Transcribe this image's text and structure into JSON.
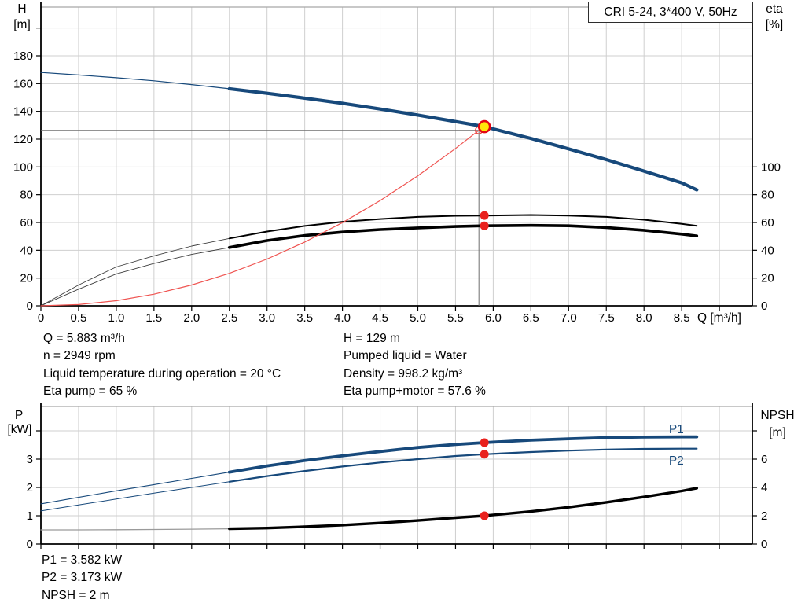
{
  "title_box": {
    "label": "CRI 5-24, 3*400 V, 50Hz"
  },
  "axis_labels": {
    "qh_left_1": "H",
    "qh_left_2": "[m]",
    "qh_right_1": "eta",
    "qh_right_2": "[%]",
    "x_unit": "Q [m³/h]",
    "p_left_1": "P",
    "p_left_2": "[kW]",
    "p_right_1": "NPSH",
    "p_right_2": "[m]"
  },
  "operating_point_info": {
    "left": [
      "Q = 5.883 m³/h",
      "n = 2949 rpm",
      "Liquid temperature during operation = 20 °C",
      "Eta pump = 65 %"
    ],
    "right": [
      "H = 129 m",
      "Pumped liquid = Water",
      "Density = 998.2 kg/m³",
      "Eta pump+motor = 57.6 %"
    ]
  },
  "power_info": [
    "P1 = 3.582 kW",
    "P2 = 3.173 kW",
    "NPSH = 2 m"
  ],
  "colors": {
    "curve_blue": "#17497b",
    "curve_black": "#000000",
    "thin_dark": "#3d3d3d",
    "system_red": "#ef5350",
    "marker_red": "#e9211d",
    "duty_yellow": "#ffe80a",
    "duty_ring": "#e30613",
    "grid": "#cfcfcf",
    "frame": "#a8a8a8",
    "crosshair": "#6e6e6e",
    "npsh_thin_gray": "#9a9a9a"
  },
  "chart_data": [
    {
      "id": "qh",
      "type": "line",
      "title": "CRI 5-24, 3*400 V, 50Hz",
      "xlabel": "Q [m³/h]",
      "ylabel_left": "H [m]",
      "ylabel_right": "eta [%]",
      "xlim": [
        0,
        9.44
      ],
      "ylim_left": [
        0,
        215
      ],
      "ylim_right": [
        0,
        215
      ],
      "right_axis_factor": 1,
      "grid": true,
      "grid_x": [
        0.5,
        1,
        1.5,
        2,
        2.5,
        3,
        3.5,
        4,
        4.5,
        5,
        5.5,
        6,
        6.5,
        7,
        7.5,
        8,
        8.5,
        9
      ],
      "grid_y": [
        20,
        40,
        60,
        80,
        100,
        120,
        140,
        160,
        180,
        200
      ],
      "x_ticks": [
        0,
        0.5,
        1,
        1.5,
        2,
        2.5,
        3,
        3.5,
        4,
        4.5,
        5,
        5.5,
        6,
        6.5,
        7,
        7.5,
        8,
        8.5,
        9
      ],
      "x_tick_labels": [
        "0",
        "0.5",
        "1.0",
        "1.5",
        "2.0",
        "2.5",
        "3.0",
        "3.5",
        "4.0",
        "4.5",
        "5.0",
        "5.5",
        "6.0",
        "6.5",
        "7.0",
        "7.5",
        "8.0",
        "8.5",
        ""
      ],
      "left_ticks": [
        0,
        20,
        40,
        60,
        80,
        100,
        120,
        140,
        160,
        180,
        200
      ],
      "left_tick_labels": [
        "0",
        "20",
        "40",
        "60",
        "80",
        "100",
        "120",
        "140",
        "160",
        "180",
        ""
      ],
      "right_ticks": [
        0,
        20,
        40,
        60,
        80,
        100
      ],
      "right_tick_labels": [
        "0",
        "20",
        "40",
        "60",
        "80",
        "100"
      ],
      "series": [
        {
          "name": "pump-head",
          "axis": "left",
          "color": "#17497b",
          "width": 4.2,
          "thin_width": 1.2,
          "thin_until": 2.5,
          "x": [
            0,
            0.5,
            1,
            1.5,
            2,
            2.5,
            3,
            3.5,
            4,
            4.5,
            5,
            5.5,
            5.883,
            6.5,
            7,
            7.5,
            8,
            8.5,
            8.7
          ],
          "y": [
            168,
            166.2,
            164.2,
            162,
            159.3,
            156.3,
            153,
            149.5,
            145.8,
            141.7,
            137.3,
            132.6,
            129,
            120.5,
            113,
            105.3,
            97,
            88.5,
            83.5
          ]
        },
        {
          "name": "eta-pump",
          "axis": "right",
          "color": "#000000",
          "thin_color": "#3d3d3d",
          "width": 2,
          "thin_width": 0.9,
          "thin_until": 2.5,
          "x": [
            0,
            0.5,
            1,
            1.5,
            2,
            2.5,
            3,
            3.5,
            4,
            4.5,
            5,
            5.5,
            5.883,
            6.5,
            7,
            7.5,
            8,
            8.5,
            8.7
          ],
          "y": [
            0,
            15,
            28,
            36,
            43,
            48.5,
            53.5,
            57.5,
            60.5,
            62.5,
            64,
            64.8,
            65,
            65.4,
            65,
            64,
            62,
            59,
            57.6
          ]
        },
        {
          "name": "eta-pump-motor",
          "axis": "right",
          "color": "#000000",
          "thin_color": "#3d3d3d",
          "width": 3.6,
          "thin_width": 0.9,
          "thin_until": 2.5,
          "x": [
            0,
            0.5,
            1,
            1.5,
            2,
            2.5,
            3,
            3.5,
            4,
            4.5,
            5,
            5.5,
            5.883,
            6.5,
            7,
            7.5,
            8,
            8.5,
            8.7
          ],
          "y": [
            0,
            12,
            23,
            30.5,
            37,
            42,
            47,
            50.6,
            53.1,
            54.9,
            56.1,
            57.1,
            57.6,
            57.9,
            57.6,
            56.4,
            54.4,
            51.6,
            50.3
          ]
        },
        {
          "name": "system-curve",
          "axis": "left",
          "color": "#ef5350",
          "width": 1.2,
          "thin_until": null,
          "x": [
            0,
            0.5,
            1,
            1.5,
            2,
            2.5,
            3,
            3.5,
            4,
            4.5,
            5,
            5.5,
            5.81,
            5.883
          ],
          "y": [
            0,
            0.9,
            3.7,
            8.4,
            15,
            23.4,
            33.7,
            45.9,
            59.9,
            75.8,
            93.6,
            113.3,
            126.4,
            129.3
          ]
        }
      ],
      "crosshair": {
        "q": 5.81,
        "v": 126.4,
        "color": "#6e6e6e"
      },
      "markers": [
        {
          "name": "system-intersection-marker",
          "style": "open",
          "axis": "left",
          "q": 5.81,
          "v": 126.4,
          "ring": "#e8413d"
        },
        {
          "name": "duty-point-marker",
          "style": "duty",
          "axis": "left",
          "q": 5.883,
          "v": 129,
          "fill": "#ffe80a",
          "ring": "#e30613"
        },
        {
          "name": "eta-pump-marker",
          "style": "dot",
          "axis": "right",
          "q": 5.883,
          "v": 65,
          "fill": "#e9211d"
        },
        {
          "name": "eta-pump-motor-marker",
          "style": "dot",
          "axis": "right",
          "q": 5.883,
          "v": 57.6,
          "fill": "#e9211d"
        }
      ],
      "curve_labels": []
    },
    {
      "id": "power",
      "type": "line",
      "title": "",
      "xlabel": "Q [m³/h]",
      "ylabel_left": "P [kW]",
      "ylabel_right": "NPSH [m]",
      "xlim": [
        0,
        9.44
      ],
      "ylim_left": [
        0,
        4.86
      ],
      "ylim_right": [
        0,
        9.72
      ],
      "right_axis_factor": 0.5,
      "grid": true,
      "grid_x": [
        0.5,
        1,
        1.5,
        2,
        2.5,
        3,
        3.5,
        4,
        4.5,
        5,
        5.5,
        6,
        6.5,
        7,
        7.5,
        8,
        8.5,
        9
      ],
      "grid_y": [
        1,
        2,
        3,
        4
      ],
      "x_ticks": [
        0,
        0.5,
        1,
        1.5,
        2,
        2.5,
        3,
        3.5,
        4,
        4.5,
        5,
        5.5,
        6,
        6.5,
        7,
        7.5,
        8,
        8.5,
        9
      ],
      "x_tick_labels": [
        "",
        "",
        "",
        "",
        "",
        "",
        "",
        "",
        "",
        "",
        "",
        "",
        "",
        "",
        "",
        "",
        "",
        "",
        ""
      ],
      "left_ticks": [
        0,
        1,
        2,
        3,
        4
      ],
      "left_tick_labels": [
        "0",
        "1",
        "2",
        "3",
        ""
      ],
      "right_ticks": [
        0,
        2,
        4,
        6,
        8
      ],
      "right_tick_labels": [
        "0",
        "2",
        "4",
        "6",
        ""
      ],
      "series": [
        {
          "name": "p1-power",
          "axis": "left",
          "color": "#17497b",
          "width": 3.8,
          "thin_width": 1.1,
          "thin_until": 2.5,
          "x": [
            0,
            0.5,
            1,
            1.5,
            2,
            2.5,
            3,
            3.5,
            4,
            4.5,
            5,
            5.5,
            5.883,
            6.5,
            7,
            7.5,
            8,
            8.5,
            8.7
          ],
          "y": [
            1.42,
            1.65,
            1.88,
            2.1,
            2.32,
            2.54,
            2.76,
            2.95,
            3.12,
            3.27,
            3.41,
            3.52,
            3.582,
            3.67,
            3.72,
            3.76,
            3.78,
            3.79,
            3.79
          ]
        },
        {
          "name": "p2-power",
          "axis": "left",
          "color": "#17497b",
          "width": 2.2,
          "thin_width": 1,
          "thin_until": 2.5,
          "x": [
            0,
            0.5,
            1,
            1.5,
            2,
            2.5,
            3,
            3.5,
            4,
            4.5,
            5,
            5.5,
            5.883,
            6.5,
            7,
            7.5,
            8,
            8.5,
            8.7
          ],
          "y": [
            1.17,
            1.38,
            1.59,
            1.8,
            2.0,
            2.2,
            2.4,
            2.58,
            2.74,
            2.88,
            3.0,
            3.11,
            3.173,
            3.25,
            3.3,
            3.34,
            3.36,
            3.37,
            3.37
          ]
        },
        {
          "name": "npsh",
          "axis": "right",
          "color": "#000000",
          "thin_color": "#9a9a9a",
          "width": 3.4,
          "thin_width": 1.3,
          "thin_until": 2.5,
          "x": [
            0,
            0.5,
            1,
            1.5,
            2,
            2.5,
            3,
            3.5,
            4,
            4.5,
            5,
            5.5,
            5.883,
            6.5,
            7,
            7.5,
            8,
            8.5,
            8.7
          ],
          "y": [
            1.0,
            1.0,
            1.01,
            1.03,
            1.05,
            1.08,
            1.13,
            1.22,
            1.34,
            1.49,
            1.66,
            1.86,
            2.0,
            2.3,
            2.6,
            2.95,
            3.33,
            3.75,
            3.95
          ]
        }
      ],
      "crosshair": null,
      "markers": [
        {
          "name": "p1-marker",
          "style": "dot",
          "axis": "left",
          "q": 5.883,
          "v": 3.582,
          "fill": "#e9211d"
        },
        {
          "name": "p2-marker",
          "style": "dot",
          "axis": "left",
          "q": 5.883,
          "v": 3.173,
          "fill": "#e9211d"
        },
        {
          "name": "npsh-marker",
          "style": "dot",
          "axis": "right",
          "q": 5.883,
          "v": 2,
          "fill": "#e9211d"
        }
      ],
      "curve_labels": [
        {
          "name": "p1-curve-label",
          "text": "P1",
          "q": 8.33,
          "v": 3.92,
          "color": "#17497b"
        },
        {
          "name": "p2-curve-label",
          "text": "P2",
          "q": 8.33,
          "v": 2.81,
          "color": "#17497b"
        }
      ]
    }
  ]
}
